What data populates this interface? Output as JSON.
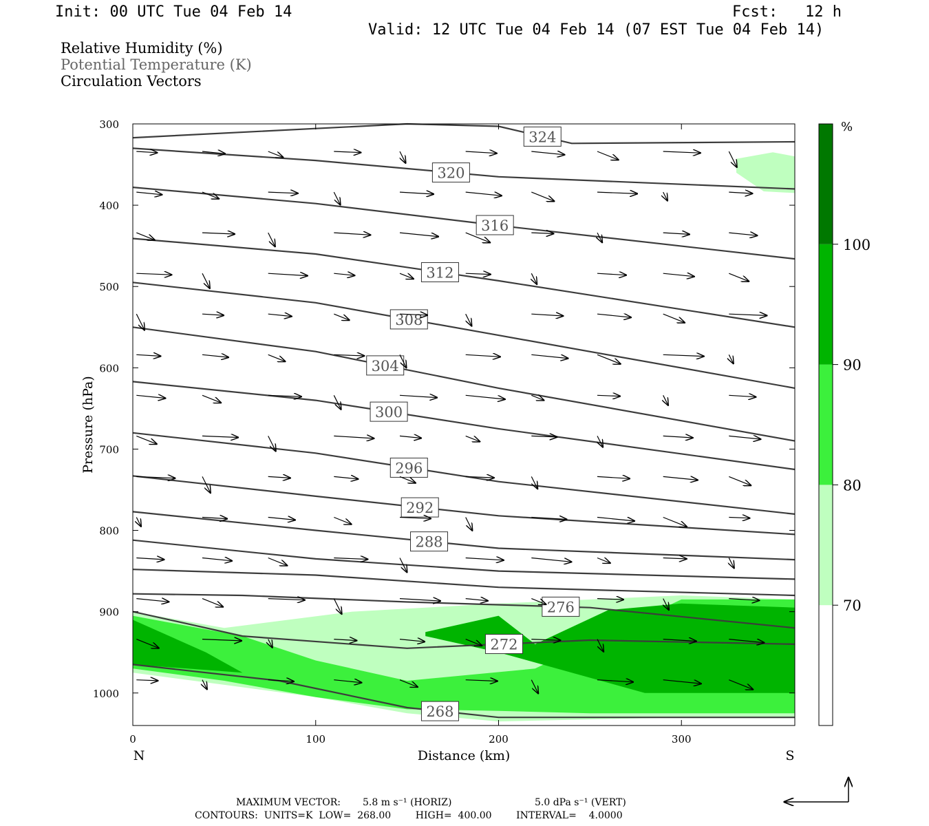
{
  "header": {
    "init": "Init: 00 UTC Tue 04 Feb 14",
    "fcst": "Fcst:   12 h",
    "valid": "Valid: 12 UTC Tue 04 Feb 14 (07 EST Tue 04 Feb 14)"
  },
  "legend": {
    "rh": "Relative Humidity (%)",
    "theta": "Potential Temperature (K)",
    "vectors": "Circulation Vectors"
  },
  "footer": {
    "max_vector_label": "MAXIMUM VECTOR:",
    "horiz": "5.8 m s⁻¹ (HORIZ)",
    "vert": "5.0 dPa s⁻¹ (VERT)",
    "contours": "CONTOURS:  UNITS=K  LOW=  268.00        HIGH=  400.00        INTERVAL=    4.0000"
  },
  "colors": {
    "rh70": "#bfffbf",
    "rh80": "#3cf03c",
    "rh90": "#00b400",
    "rh100": "#007800",
    "contour": "#3c3c3c",
    "label_theta": "#555555"
  },
  "chart_data": {
    "type": "contour-cross-section",
    "xlabel": "Distance (km)",
    "ylabel": "Pressure (hPa)",
    "xlim": [
      0,
      362
    ],
    "ylim": [
      1040,
      300
    ],
    "x_ticks": [
      0,
      100,
      200,
      300
    ],
    "y_ticks": [
      300,
      400,
      500,
      600,
      700,
      800,
      900,
      1000
    ],
    "x_end_labels": {
      "left": "N",
      "right": "S"
    },
    "colorbar": {
      "unit": "%",
      "levels": [
        70,
        80,
        90,
        100
      ],
      "colors": [
        "#ffffff",
        "#bfffbf",
        "#3cf03c",
        "#00b400",
        "#007800"
      ]
    },
    "theta_contours": [
      {
        "level": 324,
        "x": [
          0,
          150,
          200,
          240,
          362
        ],
        "p": [
          317,
          300,
          303,
          324,
          322
        ],
        "label_x": 224
      },
      {
        "level": 320,
        "x": [
          0,
          100,
          200,
          362
        ],
        "p": [
          330,
          345,
          365,
          380
        ],
        "label_x": 174
      },
      {
        "level": 316,
        "x": [
          0,
          100,
          200,
          362
        ],
        "p": [
          378,
          398,
          425,
          466
        ],
        "label_x": 198
      },
      {
        "level": 312,
        "x": [
          0,
          100,
          200,
          362
        ],
        "p": [
          441,
          460,
          493,
          550
        ],
        "label_x": 168
      },
      {
        "level": 308,
        "x": [
          0,
          100,
          200,
          362
        ],
        "p": [
          495,
          520,
          560,
          625
        ],
        "label_x": 151
      },
      {
        "level": 304,
        "x": [
          0,
          100,
          200,
          362
        ],
        "p": [
          550,
          580,
          625,
          690
        ],
        "label_x": 138
      },
      {
        "level": 300,
        "x": [
          0,
          100,
          200,
          362
        ],
        "p": [
          617,
          640,
          675,
          725
        ],
        "label_x": 140
      },
      {
        "level": 296,
        "x": [
          0,
          100,
          200,
          362
        ],
        "p": [
          680,
          705,
          740,
          780
        ],
        "label_x": 151
      },
      {
        "level": 292,
        "x": [
          0,
          100,
          200,
          362
        ],
        "p": [
          733,
          758,
          782,
          805
        ],
        "label_x": 157
      },
      {
        "level": 288,
        "x": [
          0,
          100,
          200,
          362
        ],
        "p": [
          777,
          800,
          822,
          836
        ],
        "label_x": 162
      },
      {
        "level": 284,
        "x": [
          0,
          100,
          200,
          362
        ],
        "p": [
          812,
          835,
          850,
          860
        ],
        "label_x": null
      },
      {
        "level": 280,
        "x": [
          0,
          100,
          200,
          362
        ],
        "p": [
          848,
          855,
          870,
          880
        ],
        "label_x": null
      },
      {
        "level": 276,
        "x": [
          0,
          60,
          150,
          250,
          362
        ],
        "p": [
          878,
          880,
          888,
          895,
          920
        ],
        "label_x": 234
      },
      {
        "level": 272,
        "x": [
          0,
          60,
          150,
          250,
          362
        ],
        "p": [
          900,
          930,
          945,
          935,
          940
        ],
        "label_x": 203
      },
      {
        "level": 268,
        "x": [
          0,
          80,
          150,
          200,
          362
        ],
        "p": [
          965,
          985,
          1018,
          1030,
          1030
        ],
        "label_x": 168
      }
    ],
    "rh_regions": [
      {
        "level": 70,
        "x": [
          0,
          50,
          120,
          200,
          300,
          362,
          362,
          300,
          200,
          150,
          100,
          50,
          0
        ],
        "p": [
          900,
          920,
          900,
          890,
          880,
          885,
          1030,
          1030,
          1035,
          1025,
          1005,
          990,
          975
        ]
      },
      {
        "level": 70,
        "x": [
          330,
          350,
          362,
          362,
          345,
          330
        ],
        "p": [
          343,
          335,
          340,
          385,
          383,
          360
        ]
      },
      {
        "level": 80,
        "x": [
          0,
          60,
          100,
          150,
          220,
          300,
          362,
          362,
          300,
          250,
          200,
          150,
          100,
          50,
          0
        ],
        "p": [
          905,
          930,
          960,
          985,
          970,
          885,
          885,
          1025,
          1025,
          1025,
          1022,
          1020,
          1005,
          985,
          970
        ]
      },
      {
        "level": 90,
        "x": [
          0,
          40,
          60,
          0
        ],
        "p": [
          910,
          950,
          975,
          965
        ]
      },
      {
        "level": 90,
        "x": [
          160,
          200,
          220,
          260,
          300,
          362,
          362,
          280,
          240,
          200,
          160
        ],
        "p": [
          925,
          905,
          940,
          898,
          890,
          895,
          1000,
          1000,
          975,
          950,
          930
        ]
      }
    ],
    "wind_vectors_hpa": [
      300,
      350,
      400,
      450,
      500,
      550,
      600,
      650,
      700,
      750,
      800,
      850,
      900,
      950,
      1000
    ],
    "max_vector": {
      "horiz_m_s": 5.8,
      "vert_dPa_s": 5.0
    }
  }
}
